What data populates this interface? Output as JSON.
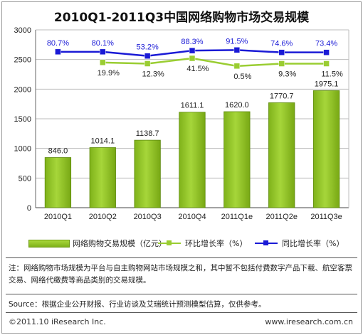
{
  "title": "2010Q1-2011Q3中国网络购物市场交易规模",
  "chart_data": {
    "type": "bar",
    "categories": [
      "2010Q1",
      "2010Q2",
      "2010Q3",
      "2010Q4",
      "2011Q1e",
      "2011Q2e",
      "2011Q3e"
    ],
    "ylim": [
      0,
      3000
    ],
    "yticks": [
      0,
      500,
      1000,
      1500,
      2000,
      2500,
      3000
    ],
    "series": [
      {
        "name": "网络购物交易规模（亿元）",
        "kind": "bar",
        "color": "#8cc21f",
        "values": [
          846.0,
          1014.1,
          1138.7,
          1611.1,
          1620.0,
          1770.7,
          1975.1
        ],
        "labels": [
          "846.0",
          "1014.1",
          "1138.7",
          "1611.1",
          "1620.0",
          "1770.7",
          "1975.1"
        ]
      },
      {
        "name": "环比增长率（%）",
        "kind": "line",
        "color": "#9acd32",
        "values": [
          null,
          19.9,
          12.3,
          41.5,
          0.5,
          9.3,
          11.5
        ],
        "labels": [
          "",
          "19.9%",
          "12.3%",
          "41.5%",
          "0.5%",
          "9.3%",
          "11.5%"
        ],
        "plot_y": [
          null,
          2450,
          2430,
          2520,
          2390,
          2430,
          2430
        ]
      },
      {
        "name": "同比增长率（%）",
        "kind": "line",
        "color": "#1a1ad6",
        "values": [
          80.7,
          80.1,
          53.2,
          88.3,
          91.5,
          74.6,
          73.4
        ],
        "labels": [
          "80.7%",
          "80.1%",
          "53.2%",
          "88.3%",
          "91.5%",
          "74.6%",
          "73.4%"
        ],
        "plot_y": [
          2630,
          2630,
          2560,
          2650,
          2660,
          2620,
          2620
        ]
      }
    ],
    "grid": true,
    "legend_position": "bottom"
  },
  "note": "注：网络购物市场规模为平台与自主购物网站市场规模之和，其中暂不包括付费数字产品下载、航空客票交易、网络代缴费等商品类别的交易规模。",
  "source": "Source：根据企业公开财报、行业访谈及艾瑞统计预测模型估算，仅供参考。",
  "copyright": "©2011.10 iResearch Inc.",
  "website": "www.iresearch.com.cn"
}
